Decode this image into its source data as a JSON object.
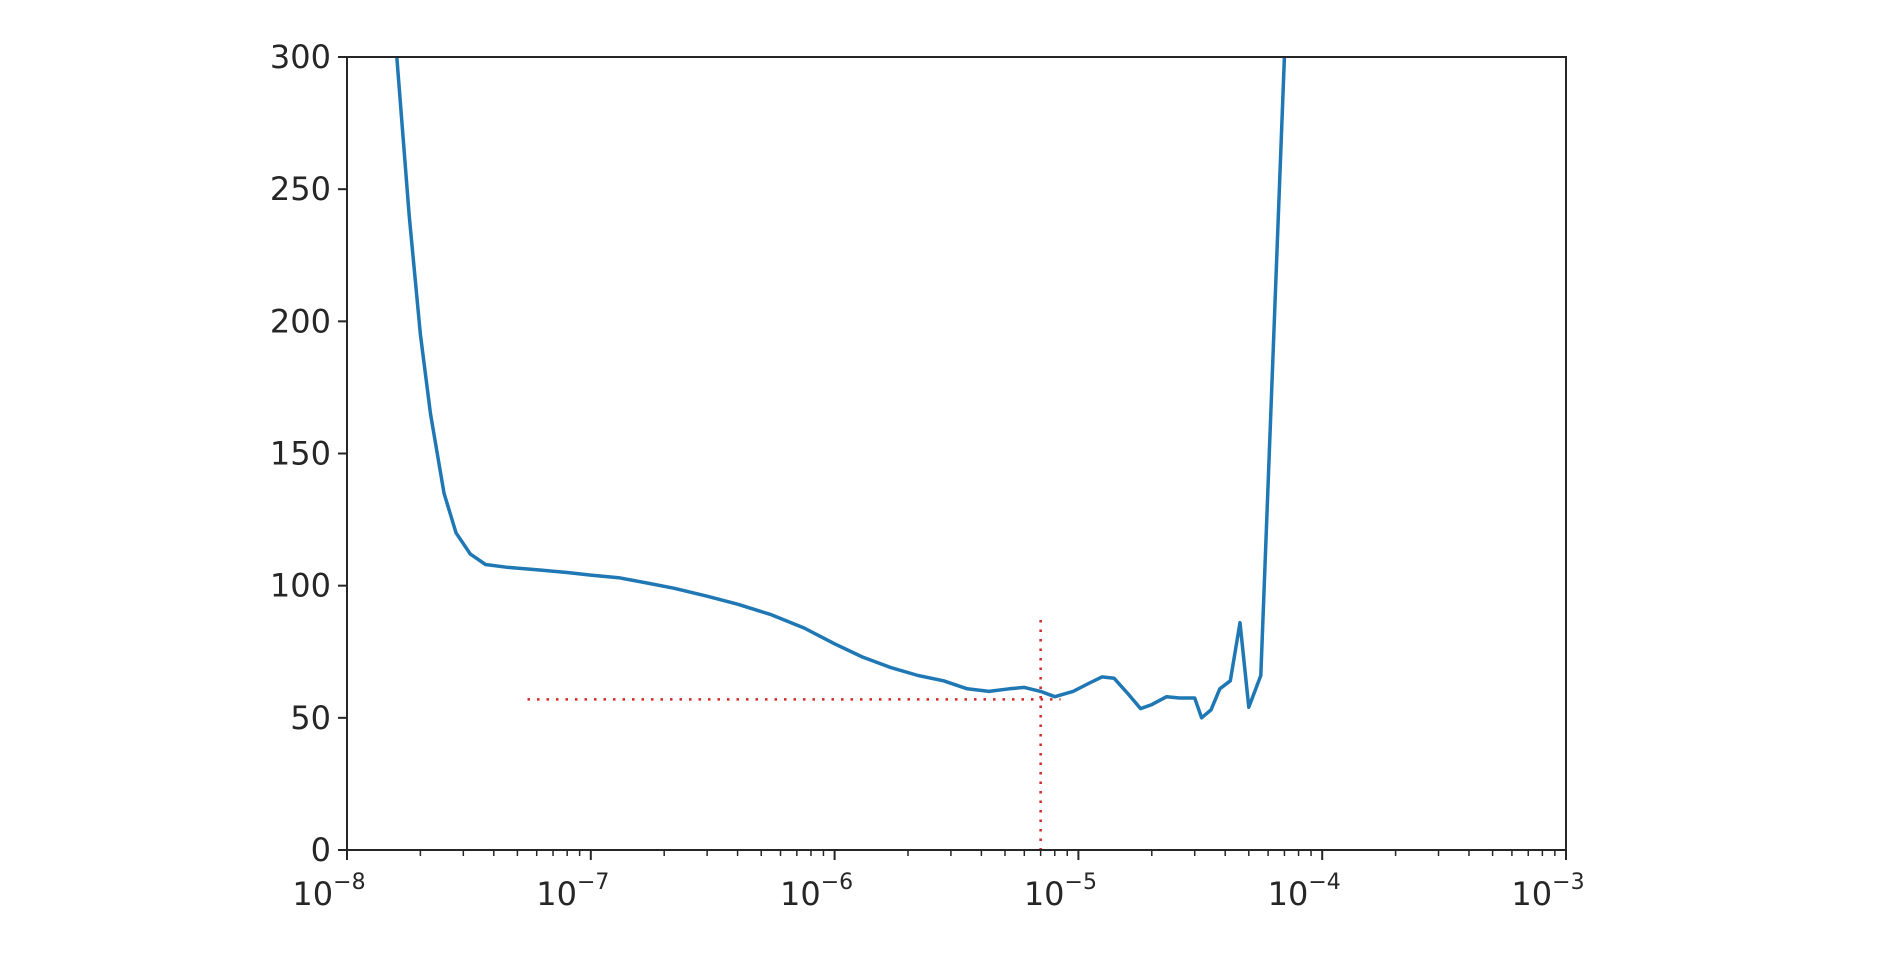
{
  "chart_data": {
    "type": "line",
    "title": "",
    "xlabel": "",
    "ylabel": "",
    "xscale": "log",
    "xlim": [
      1e-08,
      0.001
    ],
    "ylim": [
      0,
      300
    ],
    "grid": false,
    "x_ticks": [
      {
        "base": "10",
        "exp": "−8"
      },
      {
        "base": "10",
        "exp": "−7"
      },
      {
        "base": "10",
        "exp": "−6"
      },
      {
        "base": "10",
        "exp": "−5"
      },
      {
        "base": "10",
        "exp": "−4"
      },
      {
        "base": "10",
        "exp": "−3"
      }
    ],
    "x_tick_values": [
      1e-08,
      1e-07,
      1e-06,
      1e-05,
      0.0001,
      0.001
    ],
    "y_ticks": [
      "0",
      "50",
      "100",
      "150",
      "200",
      "250",
      "300"
    ],
    "y_tick_values": [
      0,
      50,
      100,
      150,
      200,
      250,
      300
    ],
    "line_color": "#1f77b4",
    "marker_color": "#d62728",
    "series": [
      {
        "x": [
          1.6e-08,
          1.8e-08,
          2e-08,
          2.2e-08,
          2.5e-08,
          2.8e-08,
          3.2e-08,
          3.7e-08,
          4.5e-08,
          6e-08,
          8e-08,
          1e-07,
          1.3e-07,
          1.7e-07,
          2.2e-07,
          3e-07,
          4e-07,
          5.5e-07,
          7.5e-07,
          1e-06,
          1.3e-06,
          1.7e-06,
          2.2e-06,
          2.8e-06,
          3.5e-06,
          4.3e-06,
          5.2e-06,
          6e-06,
          7e-06,
          8e-06,
          9.5e-06,
          1.1e-05,
          1.25e-05,
          1.4e-05,
          1.6e-05,
          1.8e-05,
          2e-05,
          2.3e-05,
          2.6e-05,
          3e-05,
          3.2e-05,
          3.5e-05,
          3.8e-05,
          4.2e-05,
          4.6e-05,
          5e-05,
          5.6e-05,
          6.3e-05,
          7e-05
        ],
        "y": [
          300,
          240,
          195,
          165,
          135,
          120,
          112,
          108,
          107,
          106,
          105,
          104,
          103,
          101,
          99,
          96,
          93,
          89,
          84,
          78,
          73,
          69,
          66,
          64,
          61,
          60,
          61,
          61.5,
          60,
          58,
          60,
          63,
          65.5,
          65,
          59,
          53.5,
          55,
          58,
          57.5,
          57.5,
          50,
          53,
          61,
          64,
          86,
          54,
          66,
          190,
          300
        ]
      }
    ],
    "suggestion_marker": {
      "x": 7e-06,
      "y": 57,
      "style": "dotted"
    }
  }
}
